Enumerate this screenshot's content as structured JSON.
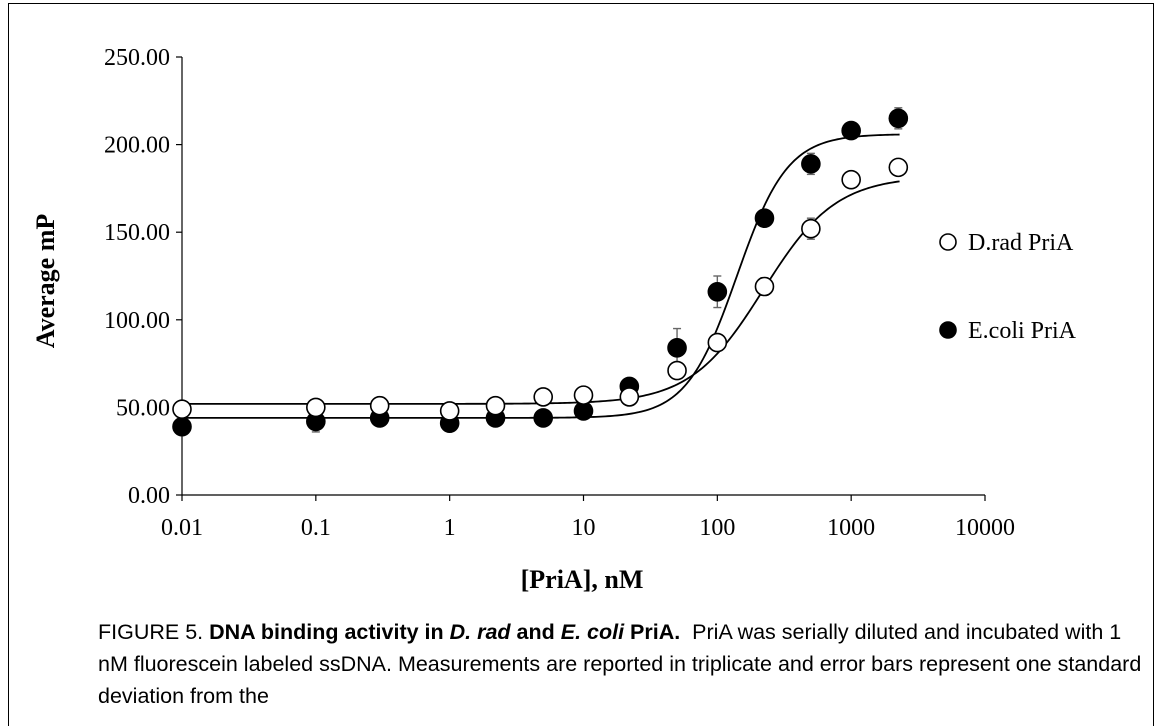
{
  "chart_data": {
    "type": "scatter",
    "xscale": "log",
    "xlabel": "[PriA], nM",
    "ylabel": "Average mP",
    "xlim": [
      0.01,
      10000
    ],
    "ylim": [
      0,
      250
    ],
    "xticks": [
      "0.01",
      "0.1",
      "1",
      "10",
      "100",
      "1000",
      "10000"
    ],
    "yticks": [
      "0.00",
      "50.00",
      "100.00",
      "150.00",
      "200.00",
      "250.00"
    ],
    "legend_position": "right",
    "series": [
      {
        "name": "D.rad PriA",
        "marker": "open-circle",
        "color": "#000000",
        "points": [
          {
            "x": 0.01,
            "y": 49,
            "err": 2
          },
          {
            "x": 0.1,
            "y": 50,
            "err": 2
          },
          {
            "x": 0.3,
            "y": 51,
            "err": 2
          },
          {
            "x": 1,
            "y": 48,
            "err": 2
          },
          {
            "x": 2.2,
            "y": 51,
            "err": 2
          },
          {
            "x": 5,
            "y": 56,
            "err": 2
          },
          {
            "x": 10,
            "y": 57,
            "err": 2
          },
          {
            "x": 22,
            "y": 56,
            "err": 2
          },
          {
            "x": 50,
            "y": 71,
            "err": 2
          },
          {
            "x": 100,
            "y": 87,
            "err": 2
          },
          {
            "x": 225,
            "y": 119,
            "err": 5
          },
          {
            "x": 500,
            "y": 152,
            "err": 6
          },
          {
            "x": 1000,
            "y": 180,
            "err": 3
          },
          {
            "x": 2250,
            "y": 187,
            "err": 3
          }
        ],
        "fit": {
          "bottom": 52,
          "top": 182,
          "ec50": 220,
          "hill": 1.6
        }
      },
      {
        "name": "E.coli PriA",
        "marker": "filled-circle",
        "color": "#000000",
        "points": [
          {
            "x": 0.01,
            "y": 39,
            "err": 2
          },
          {
            "x": 0.1,
            "y": 42,
            "err": 6
          },
          {
            "x": 0.3,
            "y": 44,
            "err": 2
          },
          {
            "x": 1,
            "y": 41,
            "err": 2
          },
          {
            "x": 2.2,
            "y": 44,
            "err": 2
          },
          {
            "x": 5,
            "y": 44,
            "err": 2
          },
          {
            "x": 10,
            "y": 48,
            "err": 2
          },
          {
            "x": 22,
            "y": 62,
            "err": 2
          },
          {
            "x": 50,
            "y": 84,
            "err": 11
          },
          {
            "x": 100,
            "y": 116,
            "err": 9
          },
          {
            "x": 225,
            "y": 158,
            "err": 2
          },
          {
            "x": 500,
            "y": 189,
            "err": 6
          },
          {
            "x": 1000,
            "y": 208,
            "err": 3
          },
          {
            "x": 2250,
            "y": 215,
            "err": 6
          }
        ],
        "fit": {
          "bottom": 44,
          "top": 206,
          "ec50": 140,
          "hill": 2.3
        }
      }
    ]
  },
  "caption": {
    "label": "FIGURE 5.",
    "title_1": "DNA binding activity in ",
    "title_drad": "D. rad",
    "title_2": " and ",
    "title_ecoli": "E. coli",
    "title_3": " PriA.",
    "body": "PriA was serially diluted and  incubated with 1 nM fluorescein labeled ssDNA.  Measurements are reported in triplicate and error bars represent one standard deviation from the"
  }
}
